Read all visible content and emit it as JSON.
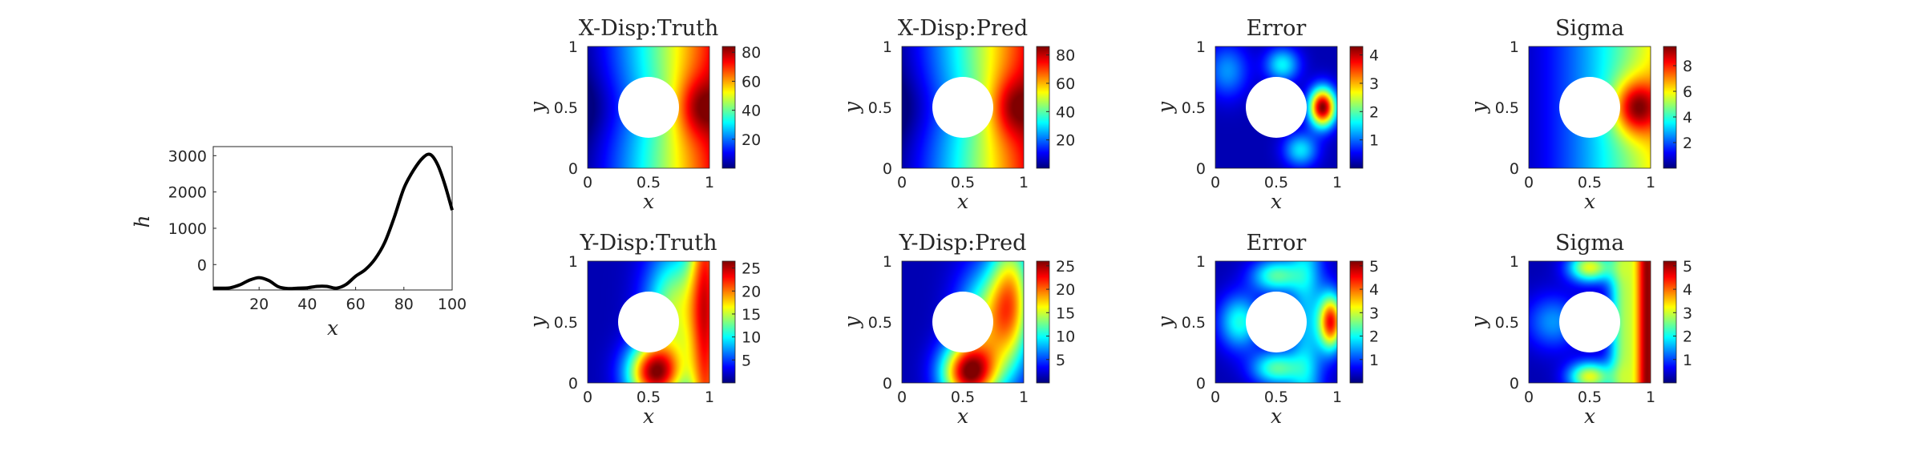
{
  "colormap": "jet",
  "colors": {
    "line": "#000000",
    "axis": "#262626",
    "hole": "#ffffff"
  },
  "chart_data": [
    {
      "type": "line",
      "title": "",
      "xlabel": "x",
      "ylabel": "h",
      "xlim": [
        1,
        100
      ],
      "ylim": [
        -700,
        3250
      ],
      "xticks": [
        "20",
        "40",
        "60",
        "80",
        "100"
      ],
      "yticks": [
        "0",
        "1000",
        "2000",
        "3000"
      ],
      "xtick_values": [
        20,
        40,
        60,
        80,
        100
      ],
      "ytick_values": [
        0,
        1000,
        2000,
        3000
      ],
      "grid": false,
      "series": [
        {
          "x": [
            1,
            5,
            8,
            12,
            16,
            20,
            24,
            28,
            32,
            36,
            40,
            44,
            48,
            52,
            56,
            60,
            64,
            68,
            72,
            76,
            80,
            84,
            88,
            91,
            94,
            97,
            100
          ],
          "values": [
            -650,
            -650,
            -640,
            -560,
            -430,
            -360,
            -440,
            -610,
            -660,
            -650,
            -640,
            -600,
            -600,
            -650,
            -550,
            -320,
            -140,
            150,
            600,
            1300,
            2100,
            2600,
            2950,
            3030,
            2750,
            2200,
            1500
          ]
        }
      ]
    },
    {
      "type": "heatmap",
      "title": "X-Disp:Truth",
      "xlabel": "x",
      "ylabel": "y",
      "xticks": [
        "0",
        "0.5",
        "1"
      ],
      "yticks": [
        "0",
        "0.5",
        "1"
      ],
      "xlim": [
        0,
        1
      ],
      "ylim": [
        0,
        1
      ],
      "field": "xdisp",
      "vmin": 0,
      "vmax": 84,
      "colorbar_ticks": [
        "20",
        "40",
        "60",
        "80"
      ],
      "colorbar_values": [
        20,
        40,
        60,
        80
      ]
    },
    {
      "type": "heatmap",
      "title": "X-Disp:Pred",
      "xlabel": "x",
      "ylabel": "y",
      "xticks": [
        "0",
        "0.5",
        "1"
      ],
      "yticks": [
        "0",
        "0.5",
        "1"
      ],
      "xlim": [
        0,
        1
      ],
      "ylim": [
        0,
        1
      ],
      "field": "xdisp",
      "vmin": 0,
      "vmax": 86,
      "colorbar_ticks": [
        "20",
        "40",
        "60",
        "80"
      ],
      "colorbar_values": [
        20,
        40,
        60,
        80
      ]
    },
    {
      "type": "heatmap",
      "title": "Error",
      "xlabel": "x",
      "ylabel": "y",
      "xticks": [
        "0",
        "0.5",
        "1"
      ],
      "yticks": [
        "0",
        "0.5",
        "1"
      ],
      "xlim": [
        0,
        1
      ],
      "ylim": [
        0,
        1
      ],
      "field": "xerr",
      "vmin": 0,
      "vmax": 4.3,
      "colorbar_ticks": [
        "1",
        "2",
        "3",
        "4"
      ],
      "colorbar_values": [
        1,
        2,
        3,
        4
      ]
    },
    {
      "type": "heatmap",
      "title": "Sigma",
      "xlabel": "x",
      "ylabel": "y",
      "xticks": [
        "0",
        "0.5",
        "1"
      ],
      "yticks": [
        "0",
        "0.5",
        "1"
      ],
      "xlim": [
        0,
        1
      ],
      "ylim": [
        0,
        1
      ],
      "field": "xsigma",
      "vmin": 0,
      "vmax": 9.5,
      "colorbar_ticks": [
        "2",
        "4",
        "6",
        "8"
      ],
      "colorbar_values": [
        2,
        4,
        6,
        8
      ]
    },
    {
      "type": "heatmap",
      "title": "Y-Disp:Truth",
      "xlabel": "x",
      "ylabel": "y",
      "xticks": [
        "0",
        "0.5",
        "1"
      ],
      "yticks": [
        "0",
        "0.5",
        "1"
      ],
      "xlim": [
        0,
        1
      ],
      "ylim": [
        0,
        1
      ],
      "field": "ydisp",
      "vmin": 0,
      "vmax": 26.5,
      "colorbar_ticks": [
        "5",
        "10",
        "15",
        "20",
        "25"
      ],
      "colorbar_values": [
        5,
        10,
        15,
        20,
        25
      ]
    },
    {
      "type": "heatmap",
      "title": "Y-Disp:Pred",
      "xlabel": "x",
      "ylabel": "y",
      "xticks": [
        "0",
        "0.5",
        "1"
      ],
      "yticks": [
        "0",
        "0.5",
        "1"
      ],
      "xlim": [
        0,
        1
      ],
      "ylim": [
        0,
        1
      ],
      "field": "ydisp2",
      "vmin": 0,
      "vmax": 26,
      "colorbar_ticks": [
        "5",
        "10",
        "15",
        "20",
        "25"
      ],
      "colorbar_values": [
        5,
        10,
        15,
        20,
        25
      ]
    },
    {
      "type": "heatmap",
      "title": "Error",
      "xlabel": "x",
      "ylabel": "y",
      "xticks": [
        "0",
        "0.5",
        "1"
      ],
      "yticks": [
        "0",
        "0.5",
        "1"
      ],
      "xlim": [
        0,
        1
      ],
      "ylim": [
        0,
        1
      ],
      "field": "yerr",
      "vmin": 0,
      "vmax": 5.2,
      "colorbar_ticks": [
        "1",
        "2",
        "3",
        "4",
        "5"
      ],
      "colorbar_values": [
        1,
        2,
        3,
        4,
        5
      ]
    },
    {
      "type": "heatmap",
      "title": "Sigma",
      "xlabel": "x",
      "ylabel": "y",
      "xticks": [
        "0",
        "0.5",
        "1"
      ],
      "yticks": [
        "0",
        "0.5",
        "1"
      ],
      "xlim": [
        0,
        1
      ],
      "ylim": [
        0,
        1
      ],
      "field": "ysigma",
      "vmin": 0,
      "vmax": 5.2,
      "colorbar_ticks": [
        "1",
        "2",
        "3",
        "4",
        "5"
      ],
      "colorbar_values": [
        1,
        2,
        3,
        4,
        5
      ]
    }
  ]
}
